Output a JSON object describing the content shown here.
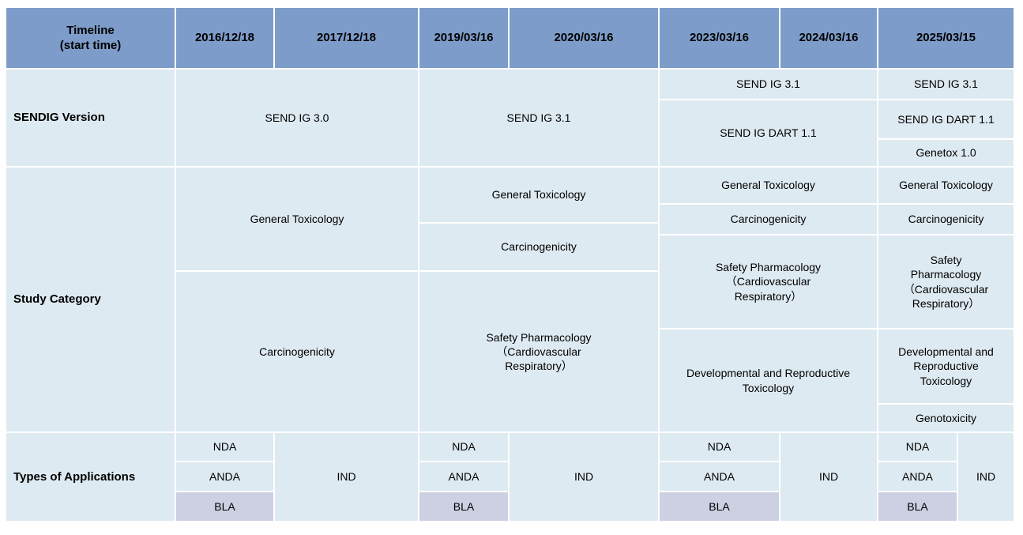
{
  "colors": {
    "header_bg": "#7D9CC9",
    "cell_bg": "#DEEAF1",
    "bla_bg": "#CDCFE3"
  },
  "header": {
    "timeline_label": "Timeline\n(start time)",
    "dates": [
      "2016/12/18",
      "2017/12/18",
      "2019/03/16",
      "2020/03/16",
      "2023/03/16",
      "2024/03/16",
      "2025/03/15"
    ]
  },
  "sendig_row": {
    "label": "SENDIG Version",
    "groups": [
      [
        "SEND IG 3.0"
      ],
      [
        "SEND IG 3.1"
      ],
      [
        "SEND IG 3.1",
        "SEND IG DART 1.1"
      ],
      [
        "SEND IG 3.1",
        "SEND IG DART 1.1",
        "Genetox 1.0"
      ]
    ]
  },
  "study_row": {
    "label": "Study Category",
    "groups": [
      [
        "General Toxicology",
        "Carcinogenicity"
      ],
      [
        "General Toxicology",
        "Carcinogenicity",
        "Safety Pharmacology\n（Cardiovascular\nRespiratory）"
      ],
      [
        "General Toxicology",
        "Carcinogenicity",
        "Safety Pharmacology\n（Cardiovascular\nRespiratory）",
        "Developmental and Reproductive\nToxicology"
      ],
      [
        "General Toxicology",
        "Carcinogenicity",
        "Safety\nPharmacology\n（Cardiovascular\nRespiratory）",
        "Developmental and\nReproductive\nToxicology",
        "Genotoxicity"
      ]
    ]
  },
  "apps_row": {
    "label": "Types of Applications",
    "groups": [
      [
        "NDA",
        "ANDA",
        "BLA"
      ],
      [
        "IND"
      ],
      [
        "NDA",
        "ANDA",
        "BLA"
      ],
      [
        "IND"
      ],
      [
        "NDA",
        "ANDA",
        "BLA"
      ],
      [
        "IND"
      ],
      [
        "NDA",
        "ANDA",
        "BLA"
      ],
      [
        "IND"
      ]
    ]
  }
}
